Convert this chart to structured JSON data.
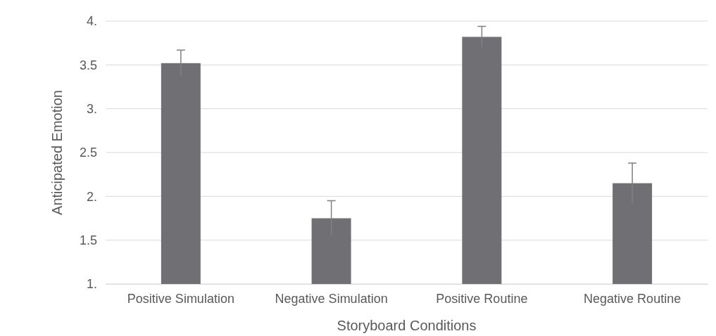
{
  "chart_data": {
    "type": "bar",
    "xlabel": "Storyboard Conditions",
    "ylabel": "Anticipated Emotion",
    "categories": [
      "Positive Simulation",
      "Negative Simulation",
      "Positive Routine",
      "Negative Routine"
    ],
    "values": [
      3.52,
      1.75,
      3.82,
      2.15
    ],
    "errors": [
      0.15,
      0.2,
      0.12,
      0.23
    ],
    "color": "#707074",
    "ylim": [
      1,
      4
    ],
    "yticks": [
      {
        "value": 1,
        "label": "1."
      },
      1.5,
      {
        "value": 2,
        "label": "2."
      },
      2.5,
      {
        "value": 3,
        "label": "3."
      },
      3.5,
      {
        "value": 4,
        "label": "4."
      }
    ],
    "grid": "y"
  }
}
